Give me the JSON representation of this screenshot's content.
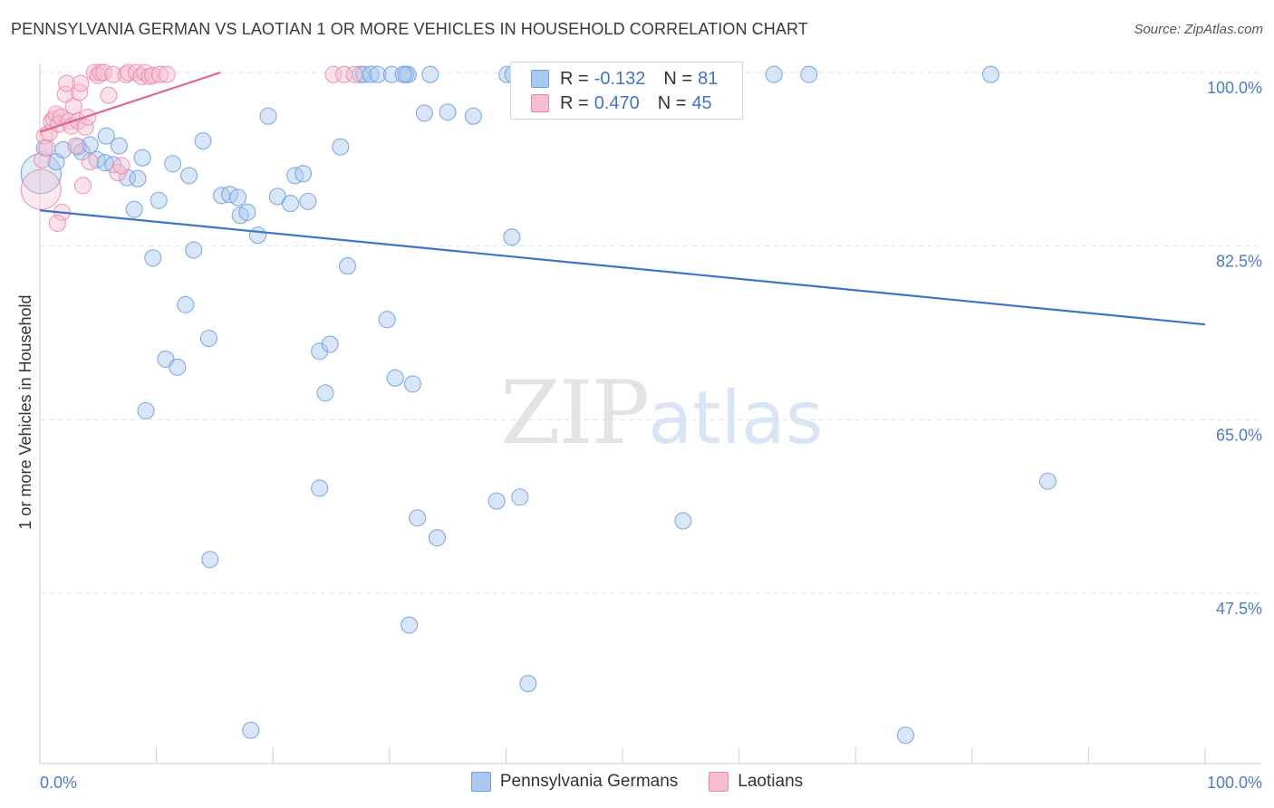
{
  "title": "PENNSYLVANIA GERMAN VS LAOTIAN 1 OR MORE VEHICLES IN HOUSEHOLD CORRELATION CHART",
  "source": "Source: ZipAtlas.com",
  "watermark": {
    "zip": "ZIP",
    "atlas": "atlas"
  },
  "legend": {
    "rows": [
      {
        "r_label": "R =",
        "r_value": "-0.132",
        "n_label": "N =",
        "n_value": "81",
        "color": "#a9c8ef",
        "edge": "#6d9fe0"
      },
      {
        "r_label": "R =",
        "r_value": "0.470",
        "n_label": "N =",
        "n_value": "45",
        "color": "#f6bfd0",
        "edge": "#ec8aa8"
      }
    ]
  },
  "bottom_legend": [
    "Pennsylvania Germans",
    "Laotians"
  ],
  "chart_data": {
    "type": "scatter",
    "title": "PENNSYLVANIA GERMAN VS LAOTIAN 1 OR MORE VEHICLES IN HOUSEHOLD CORRELATION CHART",
    "xlabel": "",
    "ylabel": "1 or more Vehicles in Household",
    "xlim": [
      0,
      100
    ],
    "ylim": [
      30,
      101.5
    ],
    "x_ticks": [
      "0.0%",
      "100.0%"
    ],
    "y_ticks": [
      {
        "value": 100.0,
        "label": "100.0%"
      },
      {
        "value": 82.5,
        "label": "82.5%"
      },
      {
        "value": 65.0,
        "label": "65.0%"
      },
      {
        "value": 47.5,
        "label": "47.5%"
      }
    ],
    "grid": true,
    "legend_placement": "top-center",
    "series": [
      {
        "name": "Pennsylvania Germans",
        "color": "#a9c8ef",
        "edge": "#6d9fe0",
        "trend": {
          "x": [
            0,
            100
          ],
          "y": [
            86.1,
            74.6
          ],
          "color": "#3f74c8"
        },
        "points": [
          [
            0.1,
            89.8,
            3
          ],
          [
            0.4,
            92.4,
            1
          ],
          [
            1.4,
            91.0,
            1
          ],
          [
            2.0,
            92.2,
            1
          ],
          [
            3.3,
            92.5,
            1
          ],
          [
            3.6,
            92.0,
            1
          ],
          [
            4.3,
            92.7,
            1
          ],
          [
            5.7,
            93.6,
            1
          ],
          [
            4.9,
            91.2,
            1
          ],
          [
            5.6,
            90.9,
            1
          ],
          [
            6.3,
            90.7,
            1
          ],
          [
            6.8,
            92.6,
            1
          ],
          [
            7.5,
            89.4,
            1
          ],
          [
            8.4,
            89.3,
            1
          ],
          [
            8.1,
            86.2,
            1
          ],
          [
            8.8,
            91.4,
            1
          ],
          [
            10.2,
            87.1,
            1
          ],
          [
            11.4,
            90.8,
            1
          ],
          [
            12.8,
            89.6,
            1
          ],
          [
            14.0,
            93.1,
            1
          ],
          [
            15.6,
            87.6,
            1
          ],
          [
            16.3,
            87.7,
            1
          ],
          [
            17.0,
            87.4,
            1
          ],
          [
            17.2,
            85.6,
            1
          ],
          [
            17.8,
            85.9,
            1
          ],
          [
            18.7,
            83.6,
            1
          ],
          [
            19.6,
            95.6,
            1
          ],
          [
            20.4,
            87.5,
            1
          ],
          [
            21.5,
            86.8,
            1
          ],
          [
            21.9,
            89.6,
            1
          ],
          [
            22.6,
            89.8,
            1
          ],
          [
            23.0,
            87.0,
            1
          ],
          [
            25.8,
            92.5,
            1
          ],
          [
            26.4,
            80.5,
            1
          ],
          [
            27.5,
            99.8,
            1
          ],
          [
            27.8,
            99.8,
            1
          ],
          [
            28.4,
            99.8,
            1
          ],
          [
            29.0,
            99.8,
            1
          ],
          [
            30.2,
            99.8,
            1
          ],
          [
            31.4,
            99.8,
            1
          ],
          [
            31.6,
            99.8,
            1
          ],
          [
            31.2,
            99.8,
            1
          ],
          [
            33.5,
            99.8,
            1
          ],
          [
            40.1,
            99.8,
            1
          ],
          [
            40.6,
            99.8,
            1
          ],
          [
            42.4,
            99.8,
            1
          ],
          [
            45.9,
            99.8,
            1
          ],
          [
            49.2,
            99.8,
            1
          ],
          [
            50.9,
            99.8,
            1
          ],
          [
            58.0,
            99.8,
            1
          ],
          [
            63.0,
            99.8,
            1
          ],
          [
            66.0,
            99.8,
            1
          ],
          [
            81.6,
            99.8,
            1
          ],
          [
            33.0,
            95.9,
            1
          ],
          [
            35.0,
            96.0,
            1
          ],
          [
            37.2,
            95.6,
            1
          ],
          [
            40.5,
            83.4,
            1
          ],
          [
            9.7,
            81.3,
            1
          ],
          [
            13.2,
            82.1,
            1
          ],
          [
            12.5,
            76.6,
            1
          ],
          [
            14.5,
            73.2,
            1
          ],
          [
            10.8,
            71.1,
            1
          ],
          [
            11.8,
            70.3,
            1
          ],
          [
            9.1,
            65.9,
            1
          ],
          [
            24.0,
            71.9,
            1
          ],
          [
            24.9,
            72.6,
            1
          ],
          [
            24.5,
            67.7,
            1
          ],
          [
            30.5,
            69.2,
            1
          ],
          [
            29.8,
            75.1,
            1
          ],
          [
            32.0,
            68.6,
            1
          ],
          [
            24.0,
            58.1,
            1
          ],
          [
            32.4,
            55.1,
            1
          ],
          [
            34.1,
            53.1,
            1
          ],
          [
            39.2,
            56.8,
            1
          ],
          [
            41.2,
            57.2,
            1
          ],
          [
            55.2,
            54.8,
            1
          ],
          [
            86.5,
            58.8,
            1
          ],
          [
            14.6,
            50.9,
            1
          ],
          [
            31.7,
            44.3,
            1
          ],
          [
            41.9,
            38.4,
            1
          ],
          [
            18.1,
            33.7,
            1
          ],
          [
            74.3,
            33.2,
            1
          ]
        ]
      },
      {
        "name": "Laotians",
        "color": "#f6bfd0",
        "edge": "#ec8aa8",
        "trend": {
          "x": [
            0,
            15.5
          ],
          "y": [
            94.0,
            100.0
          ],
          "color": "#e2648b"
        },
        "points": [
          [
            0.1,
            88.2,
            3
          ],
          [
            0.2,
            91.2,
            1
          ],
          [
            0.4,
            93.6,
            1
          ],
          [
            0.6,
            92.4,
            1
          ],
          [
            0.8,
            93.9,
            1
          ],
          [
            1.0,
            95.1,
            1
          ],
          [
            1.2,
            95.3,
            1
          ],
          [
            1.4,
            95.8,
            1
          ],
          [
            1.6,
            94.8,
            1
          ],
          [
            1.8,
            95.5,
            1
          ],
          [
            1.9,
            85.9,
            1
          ],
          [
            1.5,
            84.8,
            1
          ],
          [
            2.2,
            97.8,
            1
          ],
          [
            2.3,
            98.9,
            1
          ],
          [
            2.5,
            95.1,
            1
          ],
          [
            2.7,
            94.6,
            1
          ],
          [
            2.9,
            96.6,
            1
          ],
          [
            3.1,
            92.6,
            1
          ],
          [
            3.3,
            95.1,
            1
          ],
          [
            3.4,
            98.0,
            1
          ],
          [
            3.5,
            98.9,
            1
          ],
          [
            3.7,
            88.6,
            1
          ],
          [
            3.9,
            94.5,
            1
          ],
          [
            4.1,
            95.5,
            1
          ],
          [
            4.3,
            91.0,
            1
          ],
          [
            4.7,
            100.0,
            1
          ],
          [
            5.0,
            99.7,
            1
          ],
          [
            5.2,
            100.0,
            1
          ],
          [
            5.5,
            100.0,
            1
          ],
          [
            5.9,
            97.7,
            1
          ],
          [
            6.3,
            99.8,
            1
          ],
          [
            6.7,
            89.9,
            1
          ],
          [
            7.0,
            90.6,
            1
          ],
          [
            7.4,
            99.8,
            1
          ],
          [
            7.6,
            100.0,
            1
          ],
          [
            8.3,
            100.0,
            1
          ],
          [
            8.7,
            99.6,
            1
          ],
          [
            9.0,
            100.0,
            1
          ],
          [
            9.4,
            99.6,
            1
          ],
          [
            9.7,
            99.7,
            1
          ],
          [
            10.3,
            99.8,
            1
          ],
          [
            10.9,
            99.8,
            1
          ],
          [
            25.2,
            99.8,
            1
          ],
          [
            26.1,
            99.8,
            1
          ],
          [
            27.0,
            99.8,
            1
          ]
        ]
      }
    ]
  }
}
